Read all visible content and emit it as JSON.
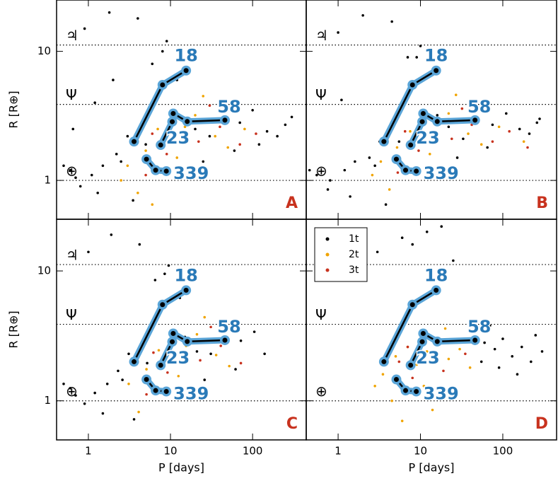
{
  "chart_data": [
    {
      "type": "scatter",
      "panel": "A",
      "ylabel": "R [R⊕]",
      "xlim": [
        0.41,
        450
      ],
      "ylim": [
        0.5,
        25
      ],
      "xscale": "log",
      "yscale": "log",
      "xticks": [
        1,
        10,
        100
      ],
      "yticks": [
        1,
        10
      ],
      "xtick_labels": false,
      "ytick_labels": true,
      "reference_lines": [
        {
          "value": 11.2,
          "label": "♃"
        },
        {
          "value": 3.88,
          "label": "Ψ"
        },
        {
          "value": 1,
          "label": "⊕"
        }
      ],
      "series": [
        {
          "color": "#000000",
          "x": [
            0.6,
            0.8,
            1.1,
            1.5,
            2.2,
            3,
            0.9,
            4,
            6,
            9,
            14,
            20,
            30,
            45,
            70,
            100,
            150,
            250,
            0.7,
            1.3,
            2.5,
            5,
            12,
            60,
            200,
            1.8,
            3.5,
            25,
            0.5,
            8,
            1.2,
            0.65,
            2,
            300,
            120
          ],
          "values": [
            1.2,
            0.9,
            1.1,
            1.3,
            1.6,
            2.2,
            15,
            18,
            8,
            12,
            3,
            2.5,
            2.2,
            3,
            2.8,
            3.5,
            2.4,
            2.7,
            1.05,
            0.8,
            1.4,
            1.9,
            6,
            1.7,
            2.2,
            20,
            0.7,
            1.4,
            1.3,
            10,
            4,
            2.5,
            6,
            3.1,
            1.9
          ]
        },
        {
          "color": "#f0a400",
          "x": [
            3,
            5,
            7,
            10,
            15,
            20,
            35,
            50,
            80,
            4,
            12,
            25,
            2.5,
            6
          ],
          "values": [
            1.3,
            1.7,
            2.5,
            2.1,
            2.6,
            3.2,
            2.2,
            1.8,
            2.5,
            0.8,
            1.5,
            4.5,
            1.0,
            0.65
          ]
        },
        {
          "color": "#c8321e",
          "x": [
            6,
            9,
            14,
            22,
            40,
            70,
            5,
            18,
            30,
            110
          ],
          "values": [
            2.3,
            1.6,
            3.1,
            2.0,
            2.6,
            1.9,
            1.1,
            2.8,
            3.8,
            2.3
          ]
        }
      ],
      "systems": [
        {
          "label": "18",
          "x": [
            3.6,
            8,
            15.5
          ],
          "values": [
            2.0,
            5.5,
            7.1
          ]
        },
        {
          "label": "58",
          "x": [
            10.8,
            16,
            46
          ],
          "values": [
            3.3,
            2.86,
            2.93
          ]
        },
        {
          "label": "23",
          "x": [
            7.6,
            10.5
          ],
          "values": [
            1.88,
            2.85
          ]
        },
        {
          "label": "339",
          "x": [
            5.1,
            6.6,
            8.9
          ],
          "values": [
            1.46,
            1.2,
            1.18
          ]
        }
      ]
    },
    {
      "type": "scatter",
      "panel": "B",
      "xlim": [
        0.41,
        450
      ],
      "ylim": [
        0.5,
        25
      ],
      "xscale": "log",
      "yscale": "log",
      "xticks": [
        1,
        10,
        100
      ],
      "yticks": [
        1,
        10
      ],
      "xtick_labels": false,
      "ytick_labels": false,
      "reference_lines": [
        {
          "value": 11.2,
          "label": "♃"
        },
        {
          "value": 3.88,
          "label": "Ψ"
        },
        {
          "value": 1,
          "label": "⊕"
        }
      ],
      "series": [
        {
          "color": "#000000",
          "x": [
            0.55,
            0.75,
            1.2,
            1.6,
            2.4,
            3.2,
            1.0,
            4.5,
            7,
            10,
            16,
            22,
            33,
            50,
            75,
            110,
            160,
            260,
            0.8,
            1.4,
            2.8,
            5.5,
            13,
            65,
            210,
            2,
            3.8,
            28,
            0.45,
            9,
            1.1,
            280
          ],
          "values": [
            1.1,
            0.85,
            1.2,
            1.4,
            1.5,
            2.0,
            14,
            17,
            9,
            11,
            3.2,
            2.6,
            2.1,
            2.9,
            2.7,
            3.3,
            2.5,
            2.8,
            1.0,
            0.75,
            1.3,
            2.0,
            6.5,
            1.8,
            2.3,
            19,
            0.65,
            1.5,
            1.2,
            9,
            4.2,
            3.0
          ]
        },
        {
          "color": "#f0a400",
          "x": [
            3.3,
            5.2,
            7.5,
            11,
            16,
            22,
            38,
            55,
            90,
            4.2,
            13,
            27,
            180,
            2.6
          ],
          "values": [
            1.4,
            1.8,
            2.4,
            2.2,
            2.7,
            3.3,
            2.3,
            1.9,
            2.6,
            0.85,
            1.6,
            4.6,
            2.0,
            1.1
          ]
        },
        {
          "color": "#c8321e",
          "x": [
            6.5,
            9.5,
            15,
            24,
            42,
            75,
            5.3,
            19,
            32,
            120,
            200
          ],
          "values": [
            2.4,
            1.7,
            3.0,
            2.1,
            2.7,
            2.0,
            1.15,
            2.9,
            3.6,
            2.4,
            1.8
          ]
        }
      ],
      "systems": [
        {
          "label": "18",
          "x": [
            3.6,
            8,
            15.5
          ],
          "values": [
            2.0,
            5.5,
            7.1
          ]
        },
        {
          "label": "58",
          "x": [
            10.8,
            16,
            46
          ],
          "values": [
            3.3,
            2.86,
            2.93
          ]
        },
        {
          "label": "23",
          "x": [
            7.6,
            10.5
          ],
          "values": [
            1.88,
            2.85
          ]
        },
        {
          "label": "339",
          "x": [
            5.1,
            6.6,
            8.9
          ],
          "values": [
            1.46,
            1.2,
            1.18
          ]
        }
      ]
    },
    {
      "type": "scatter",
      "panel": "C",
      "xlabel": "P [days]",
      "ylabel": "R [R⊕]",
      "xlim": [
        0.41,
        450
      ],
      "ylim": [
        0.5,
        25
      ],
      "xscale": "log",
      "yscale": "log",
      "xticks": [
        1,
        10,
        100
      ],
      "yticks": [
        1,
        10
      ],
      "xtick_labels": true,
      "ytick_labels": true,
      "reference_lines": [
        {
          "value": 11.2,
          "label": "♃"
        },
        {
          "value": 3.88,
          "label": "Ψ"
        },
        {
          "value": 1,
          "label": "⊕"
        }
      ],
      "series": [
        {
          "color": "#000000",
          "x": [
            0.6,
            0.9,
            1.2,
            1.7,
            2.3,
            3.1,
            1.0,
            4.2,
            6.5,
            9.5,
            15,
            21,
            31,
            48,
            72,
            105,
            140,
            0.7,
            1.5,
            2.6,
            5.2,
            13,
            62,
            1.9,
            3.6,
            26,
            0.5,
            8.5
          ],
          "values": [
            1.25,
            0.95,
            1.15,
            1.35,
            1.7,
            2.3,
            14,
            16,
            8.5,
            11,
            3.1,
            2.4,
            2.3,
            3.1,
            2.9,
            3.4,
            2.3,
            1.1,
            0.8,
            1.45,
            1.95,
            6.2,
            1.75,
            19,
            0.72,
            1.45,
            1.35,
            9.5
          ]
        },
        {
          "color": "#f0a400",
          "x": [
            3.1,
            5.1,
            7.2,
            10.5,
            15.5,
            21,
            36,
            52,
            4.1,
            12.5,
            26
          ],
          "values": [
            1.35,
            1.75,
            2.45,
            2.15,
            2.65,
            3.25,
            2.25,
            1.85,
            0.82,
            1.55,
            4.4
          ]
        },
        {
          "color": "#c8321e",
          "x": [
            6.2,
            9.2,
            14.5,
            23,
            41,
            72,
            5.1,
            18.5,
            31
          ],
          "values": [
            2.35,
            1.65,
            3.05,
            2.05,
            2.65,
            1.95,
            1.12,
            2.85,
            3.7
          ]
        }
      ],
      "systems": [
        {
          "label": "18",
          "x": [
            3.6,
            8,
            15.5
          ],
          "values": [
            2.0,
            5.5,
            7.1
          ]
        },
        {
          "label": "58",
          "x": [
            10.8,
            16,
            46
          ],
          "values": [
            3.3,
            2.86,
            2.93
          ]
        },
        {
          "label": "23",
          "x": [
            7.6,
            10.5
          ],
          "values": [
            1.88,
            2.85
          ]
        },
        {
          "label": "339",
          "x": [
            5.1,
            6.6,
            8.9
          ],
          "values": [
            1.46,
            1.2,
            1.18
          ]
        }
      ]
    },
    {
      "type": "scatter",
      "panel": "D",
      "xlabel": "P [days]",
      "xlim": [
        0.41,
        450
      ],
      "ylim": [
        0.5,
        25
      ],
      "xscale": "log",
      "yscale": "log",
      "xticks": [
        1,
        10,
        100
      ],
      "yticks": [
        1,
        10
      ],
      "xtick_labels": true,
      "ytick_labels": false,
      "legend": "upper left",
      "reference_lines": [
        {
          "value": 11.2
        },
        {
          "value": 3.88,
          "label": "Ψ"
        },
        {
          "value": 1,
          "label": "⊕"
        }
      ],
      "series": [
        {
          "name": "1t",
          "color": "#000000",
          "x": [
            3,
            6,
            12,
            25,
            1.5,
            40,
            60,
            80,
            100,
            130,
            170,
            220,
            300,
            90,
            150,
            250,
            55,
            70,
            8,
            18
          ],
          "values": [
            14,
            18,
            20,
            12,
            10,
            3.5,
            2.8,
            2.5,
            3.0,
            2.2,
            2.6,
            2.0,
            2.4,
            1.8,
            1.6,
            3.2,
            2.0,
            3.8,
            16,
            22
          ]
        },
        {
          "name": "2t",
          "color": "#f0a400",
          "x": [
            3.5,
            5,
            7,
            9,
            12,
            16,
            22,
            30,
            40,
            4.5,
            6,
            11,
            20,
            2.8,
            14
          ],
          "values": [
            1.6,
            2.2,
            2.6,
            1.9,
            2.4,
            3.0,
            2.1,
            2.5,
            1.8,
            1.0,
            0.7,
            1.3,
            3.6,
            1.3,
            0.85
          ]
        },
        {
          "name": "3t",
          "color": "#c8321e",
          "x": [
            5.5,
            8,
            11,
            15,
            19,
            26,
            35,
            7,
            13,
            45
          ],
          "values": [
            2.0,
            1.5,
            2.8,
            2.2,
            1.7,
            2.9,
            2.3,
            2.6,
            10,
            3.1
          ]
        }
      ],
      "systems": [
        {
          "label": "18",
          "x": [
            3.6,
            8,
            15.5
          ],
          "values": [
            2.0,
            5.5,
            7.1
          ]
        },
        {
          "label": "58",
          "x": [
            10.8,
            16,
            46
          ],
          "values": [
            3.3,
            2.86,
            2.93
          ]
        },
        {
          "label": "23",
          "x": [
            7.6,
            10.5
          ],
          "values": [
            1.88,
            2.85
          ]
        },
        {
          "label": "339",
          "x": [
            5.1,
            6.6,
            8.9
          ],
          "values": [
            1.46,
            1.2,
            1.18
          ]
        }
      ]
    }
  ]
}
